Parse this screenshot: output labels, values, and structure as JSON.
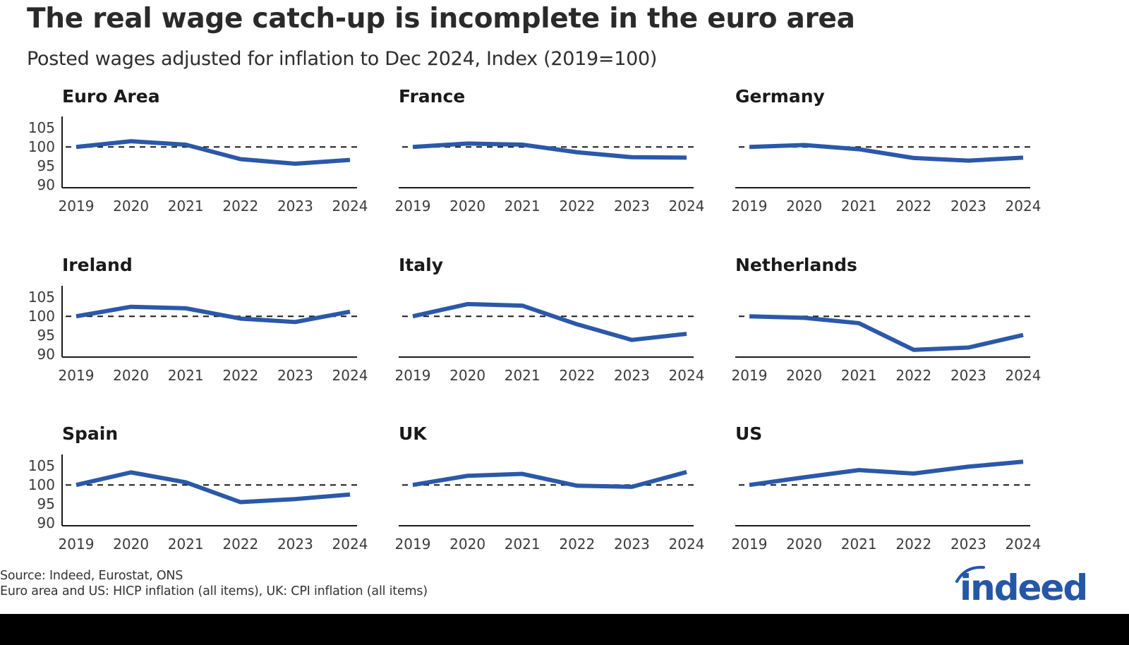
{
  "header": {
    "title": "The real wage catch-up is incomplete in the euro area",
    "subtitle": "Posted wages adjusted for inflation to Dec 2024, Index (2019=100)"
  },
  "footer": {
    "source": "Source: Indeed, Eurostat, ONS",
    "note": "Euro area and US: HICP inflation (all items), UK: CPI inflation (all items)"
  },
  "logo": {
    "text": "indeed",
    "color": "#2557a7"
  },
  "colors": {
    "line": "#2b58a8",
    "axis": "#1a1a1a",
    "reference": "#1a1a1a"
  },
  "chart_data": [
    {
      "type": "line",
      "title": "Euro Area",
      "categories": [
        "2019",
        "2020",
        "2021",
        "2022",
        "2023",
        "2024"
      ],
      "values": [
        100,
        101.5,
        100.6,
        96.8,
        95.6,
        96.6
      ],
      "yticks": [
        "105",
        "100",
        "95",
        "90"
      ],
      "ylim": [
        89.3,
        108
      ],
      "reference_line": 100,
      "show_yticks": true
    },
    {
      "type": "line",
      "title": "France",
      "categories": [
        "2019",
        "2020",
        "2021",
        "2022",
        "2023",
        "2024"
      ],
      "values": [
        100,
        100.9,
        100.6,
        98.6,
        97.3,
        97.2
      ],
      "yticks": [],
      "ylim": [
        89.3,
        108
      ],
      "reference_line": 100,
      "show_yticks": false
    },
    {
      "type": "line",
      "title": "Germany",
      "categories": [
        "2019",
        "2020",
        "2021",
        "2022",
        "2023",
        "2024"
      ],
      "values": [
        100,
        100.5,
        99.4,
        97.1,
        96.4,
        97.2
      ],
      "yticks": [],
      "ylim": [
        89.3,
        108
      ],
      "reference_line": 100,
      "show_yticks": false
    },
    {
      "type": "line",
      "title": "Ireland",
      "categories": [
        "2019",
        "2020",
        "2021",
        "2022",
        "2023",
        "2024"
      ],
      "values": [
        100,
        102.5,
        102.1,
        99.4,
        98.5,
        101.2
      ],
      "yticks": [
        "105",
        "100",
        "95",
        "90"
      ],
      "ylim": [
        89.3,
        108
      ],
      "reference_line": 100,
      "show_yticks": true
    },
    {
      "type": "line",
      "title": "Italy",
      "categories": [
        "2019",
        "2020",
        "2021",
        "2022",
        "2023",
        "2024"
      ],
      "values": [
        100,
        103.2,
        102.8,
        97.9,
        93.8,
        95.4
      ],
      "yticks": [],
      "ylim": [
        89.3,
        108
      ],
      "reference_line": 100,
      "show_yticks": false
    },
    {
      "type": "line",
      "title": "Netherlands",
      "categories": [
        "2019",
        "2020",
        "2021",
        "2022",
        "2023",
        "2024"
      ],
      "values": [
        100,
        99.6,
        98.2,
        91.2,
        91.8,
        95.1
      ],
      "yticks": [],
      "ylim": [
        89.3,
        108
      ],
      "reference_line": 100,
      "show_yticks": false
    },
    {
      "type": "line",
      "title": "Spain",
      "categories": [
        "2019",
        "2020",
        "2021",
        "2022",
        "2023",
        "2024"
      ],
      "values": [
        100,
        103.3,
        100.7,
        95.5,
        96.3,
        97.5
      ],
      "yticks": [
        "105",
        "100",
        "95",
        "90"
      ],
      "ylim": [
        89.3,
        108
      ],
      "reference_line": 100,
      "show_yticks": true
    },
    {
      "type": "line",
      "title": "UK",
      "categories": [
        "2019",
        "2020",
        "2021",
        "2022",
        "2023",
        "2024"
      ],
      "values": [
        100,
        102.4,
        102.9,
        99.8,
        99.5,
        103.4
      ],
      "yticks": [],
      "ylim": [
        89.3,
        108
      ],
      "reference_line": 100,
      "show_yticks": false
    },
    {
      "type": "line",
      "title": "US",
      "categories": [
        "2019",
        "2020",
        "2021",
        "2022",
        "2023",
        "2024"
      ],
      "values": [
        100,
        102,
        103.9,
        103,
        104.8,
        106.1
      ],
      "yticks": [],
      "ylim": [
        89.3,
        108
      ],
      "reference_line": 100,
      "show_yticks": false
    }
  ]
}
